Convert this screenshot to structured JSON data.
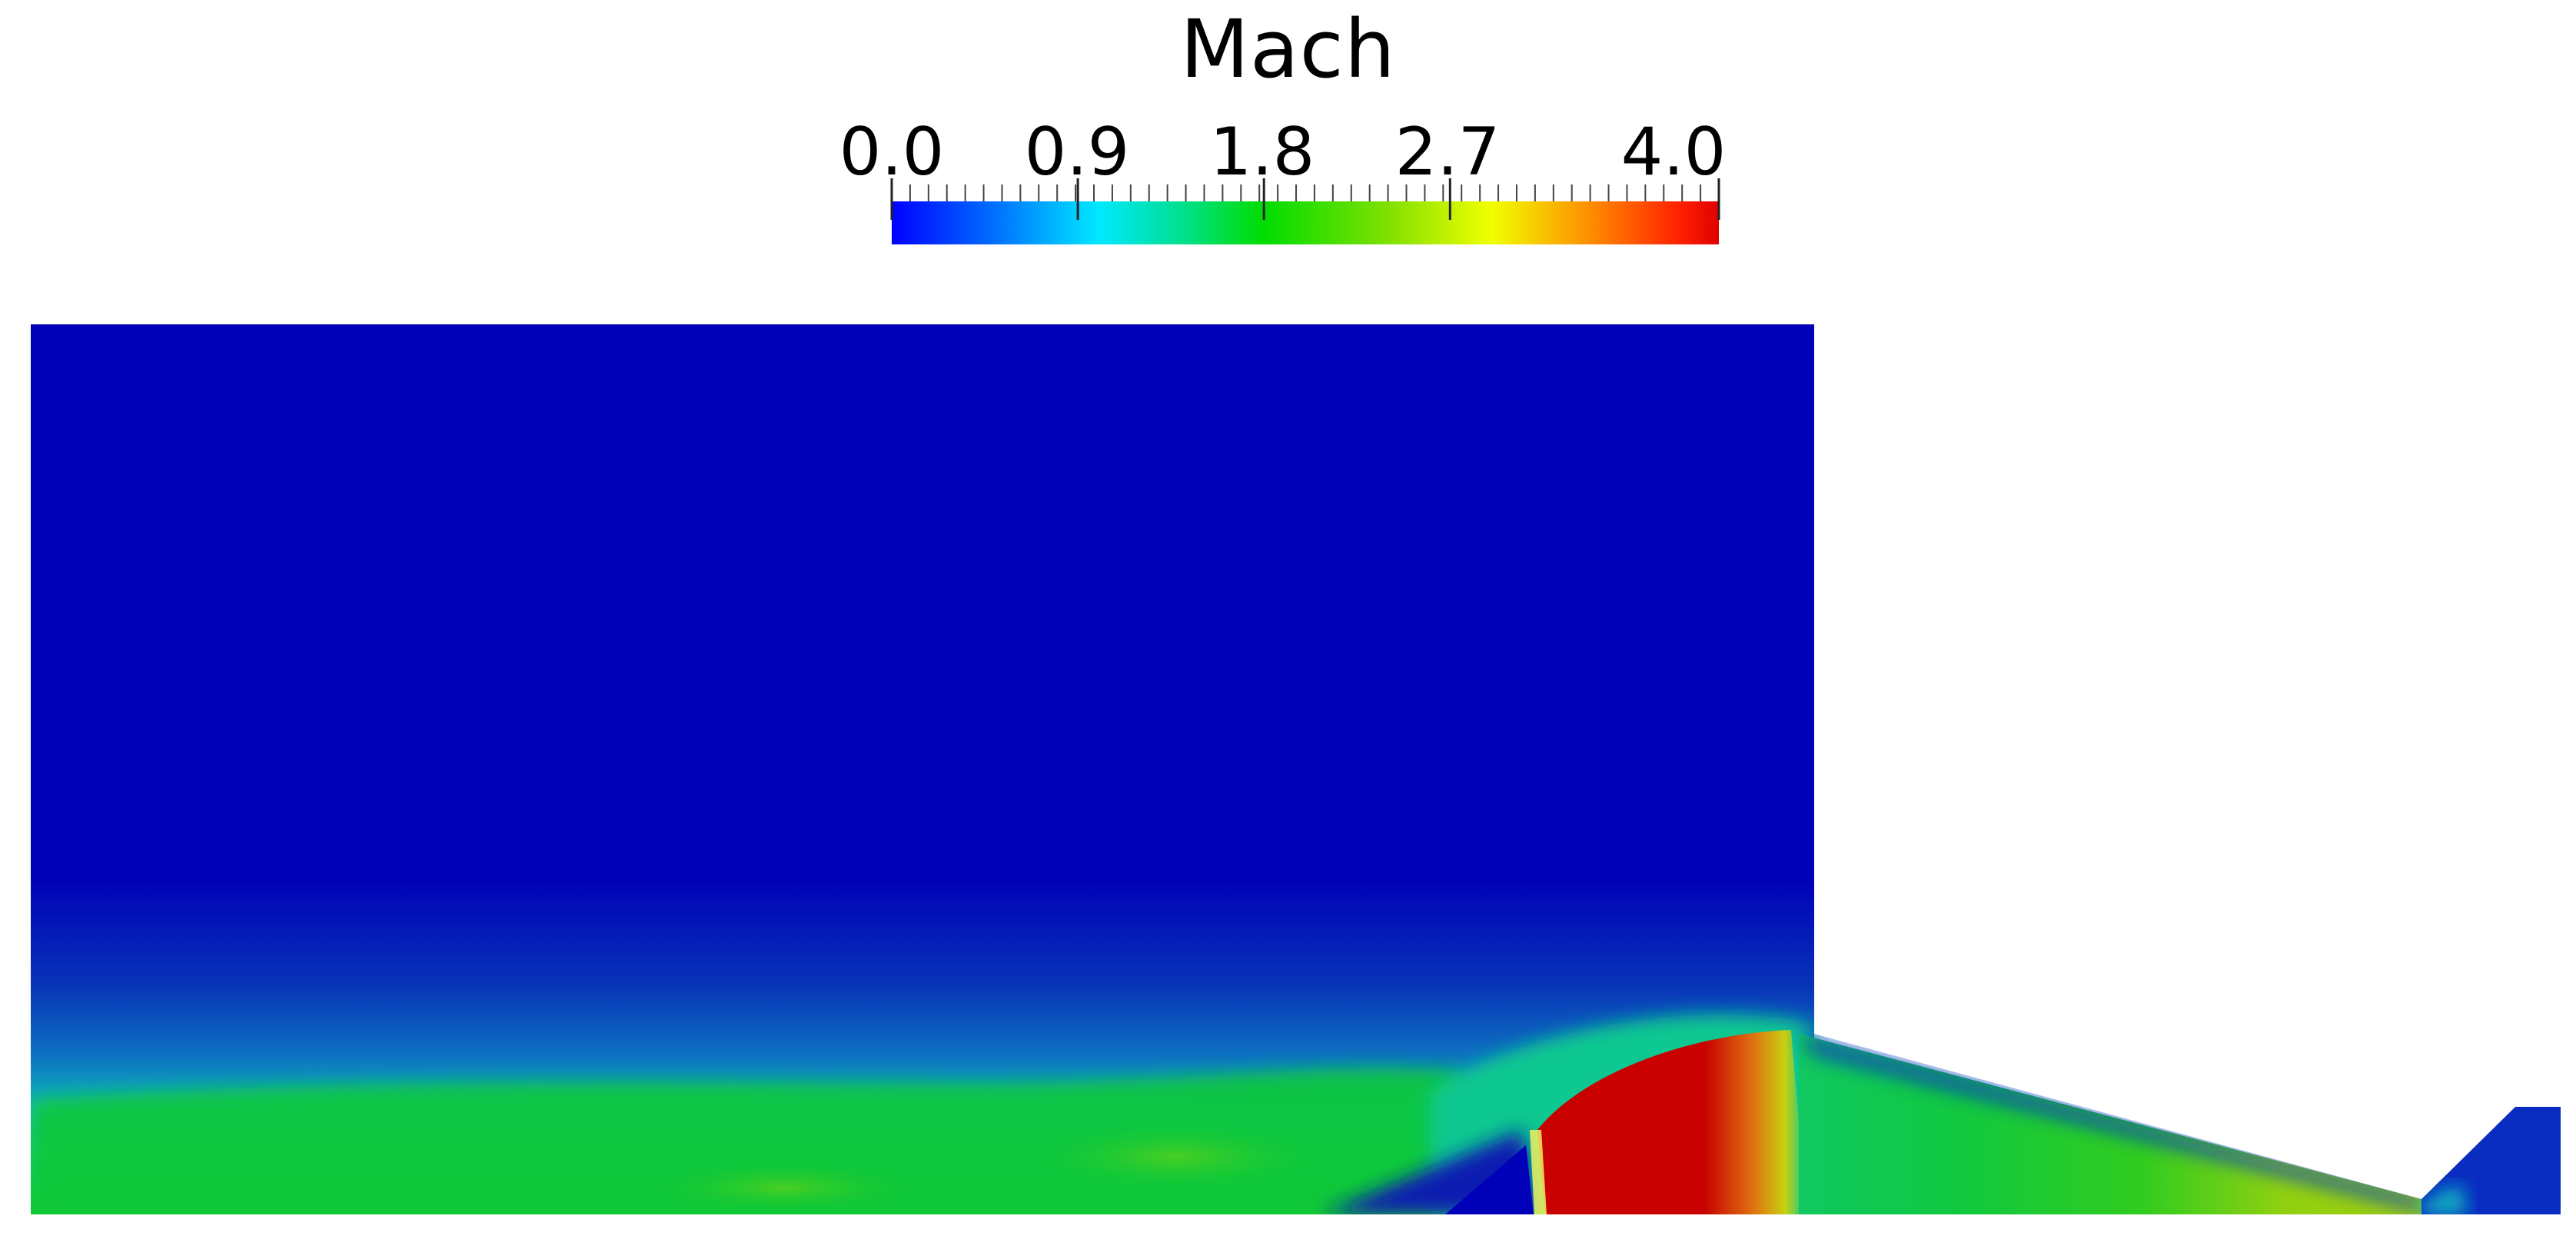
{
  "colorbar": {
    "title": "Mach",
    "range": [
      0.0,
      4.0
    ],
    "tick_labels": [
      "0.0",
      "0.9",
      "1.8",
      "2.7",
      "4.0"
    ],
    "tick_values": [
      0.0,
      0.9,
      1.8,
      2.7,
      4.0
    ],
    "colormap_stops": [
      {
        "value": 0.0,
        "color": "#0000ff"
      },
      {
        "value": 0.5,
        "color": "#0070ff"
      },
      {
        "value": 1.0,
        "color": "#00e8ff"
      },
      {
        "value": 1.4,
        "color": "#00e090"
      },
      {
        "value": 1.8,
        "color": "#00dd00"
      },
      {
        "value": 2.4,
        "color": "#80e000"
      },
      {
        "value": 2.9,
        "color": "#f0ff00"
      },
      {
        "value": 3.4,
        "color": "#ff8800"
      },
      {
        "value": 3.8,
        "color": "#ff2200"
      },
      {
        "value": 4.0,
        "color": "#e00000"
      }
    ]
  },
  "field": {
    "variable": "Mach",
    "colors": {
      "background": "#0000b8",
      "deep_blue": "#0a0fb0",
      "mid_blue": "#0f55c0",
      "cyan": "#10c8b8",
      "teal": "#10c880",
      "green": "#10c830",
      "yellow_green": "#90d010",
      "orange": "#e08010",
      "red": "#c80000"
    }
  }
}
